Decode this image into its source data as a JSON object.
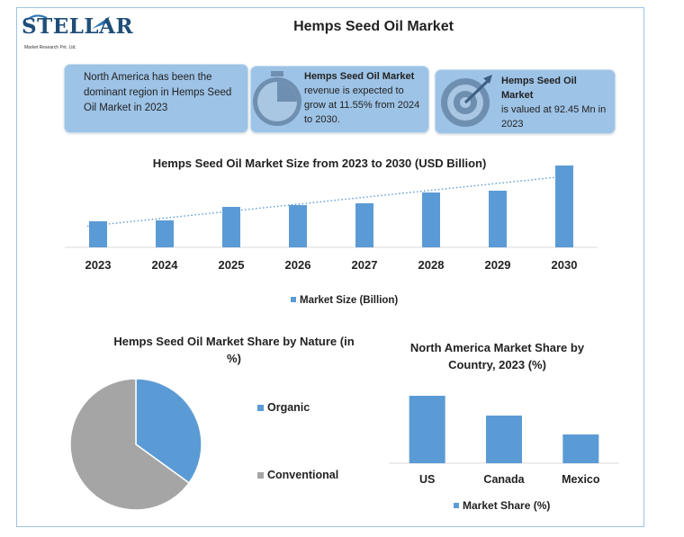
{
  "header": {
    "logo_name": "STELLAR",
    "logo_subtitle": "Market Research Pvt. Ltd.",
    "title": "Hemps Seed Oil Market"
  },
  "info_boxes": [
    {
      "heading": "",
      "text": "North America has been the dominant region in Hemps Seed Oil Market in 2023",
      "icon": ""
    },
    {
      "heading": "Hemps Seed Oil Market",
      "text": "revenue is expected to grow at 11.55% from 2024 to 2030.",
      "icon": "stopwatch-icon"
    },
    {
      "heading": "Hemps Seed Oil Market",
      "text": "is valued at 92.45 Mn in 2023",
      "icon": "target-icon"
    }
  ],
  "colors": {
    "accent": "#5b9bd5",
    "box": "#9dc3e6",
    "gray": "#a5a5a5",
    "frame": "#9dc3e6"
  },
  "chart_data": [
    {
      "type": "bar",
      "title": "Hemps Seed Oil Market Size from 2023 to 2030 (USD Billion)",
      "categories": [
        "2023",
        "2024",
        "2025",
        "2026",
        "2027",
        "2028",
        "2029",
        "2030"
      ],
      "series": [
        {
          "name": "Market Size (Billion)",
          "values": [
            29,
            30,
            45,
            47,
            49,
            61,
            63,
            91
          ]
        }
      ],
      "trendline": "linear, dotted",
      "ylim": [
        0,
        100
      ],
      "grid": false,
      "legend": "bottom"
    },
    {
      "type": "pie",
      "title": "Hemps Seed Oil Market Share by Nature (in %)",
      "categories": [
        "Organic",
        "Conventional"
      ],
      "values": [
        35,
        65
      ],
      "legend": "right"
    },
    {
      "type": "bar",
      "title": "North America Market Share by Country, 2023 (%)",
      "categories": [
        "US",
        "Canada",
        "Mexico"
      ],
      "series": [
        {
          "name": "Market Share (%)",
          "values": [
            75,
            53,
            32
          ]
        }
      ],
      "ylim": [
        0,
        100
      ],
      "grid": false,
      "legend": "bottom"
    }
  ]
}
